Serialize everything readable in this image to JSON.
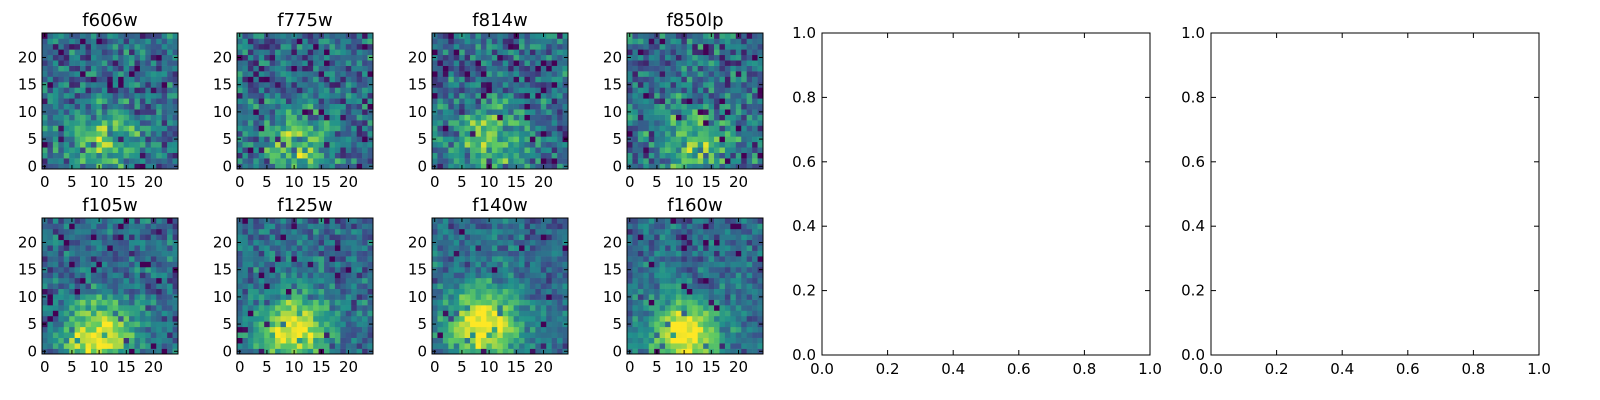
{
  "figure": {
    "layout": "2 rows, 4 image panels on the left, 2 empty axes spanning the right",
    "colormap": "viridis",
    "colormap_stops": [
      "#440154",
      "#3b528b",
      "#21918c",
      "#5ec962",
      "#fde725"
    ]
  },
  "chart_data": [
    {
      "type": "heatmap",
      "title": "f606w",
      "x_ticks": [
        "0",
        "5",
        "10",
        "15",
        "20"
      ],
      "y_ticks": [
        "0",
        "5",
        "10",
        "15",
        "20"
      ],
      "xlim": [
        -0.5,
        24.5
      ],
      "ylim": [
        -0.5,
        24.5
      ],
      "grid_size": 25,
      "blob_center": [
        11,
        4
      ],
      "blob_strength": 0.4,
      "noise_amplitude": 0.65,
      "seed": 11
    },
    {
      "type": "heatmap",
      "title": "f775w",
      "x_ticks": [
        "0",
        "5",
        "10",
        "15",
        "20"
      ],
      "y_ticks": [
        "0",
        "5",
        "10",
        "15",
        "20"
      ],
      "xlim": [
        -0.5,
        24.5
      ],
      "ylim": [
        -0.5,
        24.5
      ],
      "grid_size": 25,
      "blob_center": [
        11,
        4
      ],
      "blob_strength": 0.4,
      "noise_amplitude": 0.65,
      "seed": 23
    },
    {
      "type": "heatmap",
      "title": "f814w",
      "x_ticks": [
        "0",
        "5",
        "10",
        "15",
        "20"
      ],
      "y_ticks": [
        "0",
        "5",
        "10",
        "15",
        "20"
      ],
      "xlim": [
        -0.5,
        24.5
      ],
      "ylim": [
        -0.5,
        24.5
      ],
      "grid_size": 25,
      "blob_center": [
        10,
        5
      ],
      "blob_strength": 0.4,
      "noise_amplitude": 0.65,
      "seed": 37
    },
    {
      "type": "heatmap",
      "title": "f850lp",
      "x_ticks": [
        "0",
        "5",
        "10",
        "15",
        "20"
      ],
      "y_ticks": [
        "0",
        "5",
        "10",
        "15",
        "20"
      ],
      "xlim": [
        -0.5,
        24.5
      ],
      "ylim": [
        -0.5,
        24.5
      ],
      "grid_size": 25,
      "blob_center": [
        12,
        4
      ],
      "blob_strength": 0.4,
      "noise_amplitude": 0.7,
      "seed": 51
    },
    {
      "type": "heatmap",
      "title": "f105w",
      "x_ticks": [
        "0",
        "5",
        "10",
        "15",
        "20"
      ],
      "y_ticks": [
        "0",
        "5",
        "10",
        "15",
        "20"
      ],
      "xlim": [
        -0.5,
        24.5
      ],
      "ylim": [
        -0.5,
        24.5
      ],
      "grid_size": 25,
      "blob_center": [
        10,
        3
      ],
      "blob_strength": 0.65,
      "noise_amplitude": 0.5,
      "seed": 67
    },
    {
      "type": "heatmap",
      "title": "f125w",
      "x_ticks": [
        "0",
        "5",
        "10",
        "15",
        "20"
      ],
      "y_ticks": [
        "0",
        "5",
        "10",
        "15",
        "20"
      ],
      "xlim": [
        -0.5,
        24.5
      ],
      "ylim": [
        -0.5,
        24.5
      ],
      "grid_size": 25,
      "blob_center": [
        10,
        4
      ],
      "blob_strength": 0.65,
      "noise_amplitude": 0.5,
      "seed": 79
    },
    {
      "type": "heatmap",
      "title": "f140w",
      "x_ticks": [
        "0",
        "5",
        "10",
        "15",
        "20"
      ],
      "y_ticks": [
        "0",
        "5",
        "10",
        "15",
        "20"
      ],
      "xlim": [
        -0.5,
        24.5
      ],
      "ylim": [
        -0.5,
        24.5
      ],
      "grid_size": 25,
      "blob_center": [
        9,
        5
      ],
      "blob_strength": 0.7,
      "noise_amplitude": 0.45,
      "seed": 97
    },
    {
      "type": "heatmap",
      "title": "f160w",
      "x_ticks": [
        "0",
        "5",
        "10",
        "15",
        "20"
      ],
      "y_ticks": [
        "0",
        "5",
        "10",
        "15",
        "20"
      ],
      "xlim": [
        -0.5,
        24.5
      ],
      "ylim": [
        -0.5,
        24.5
      ],
      "grid_size": 25,
      "blob_center": [
        10,
        3
      ],
      "blob_strength": 0.7,
      "noise_amplitude": 0.45,
      "seed": 113
    },
    {
      "type": "line",
      "title": "",
      "series": [],
      "xlim": [
        0.0,
        1.0
      ],
      "ylim": [
        0.0,
        1.0
      ],
      "x_ticks": [
        "0.0",
        "0.2",
        "0.4",
        "0.6",
        "0.8",
        "1.0"
      ],
      "y_ticks": [
        "0.0",
        "0.2",
        "0.4",
        "0.6",
        "0.8",
        "1.0"
      ]
    },
    {
      "type": "line",
      "title": "",
      "series": [],
      "xlim": [
        0.0,
        1.0
      ],
      "ylim": [
        0.0,
        1.0
      ],
      "x_ticks": [
        "0.0",
        "0.2",
        "0.4",
        "0.6",
        "0.8",
        "1.0"
      ],
      "y_ticks": [
        "0.0",
        "0.2",
        "0.4",
        "0.6",
        "0.8",
        "1.0"
      ]
    }
  ]
}
